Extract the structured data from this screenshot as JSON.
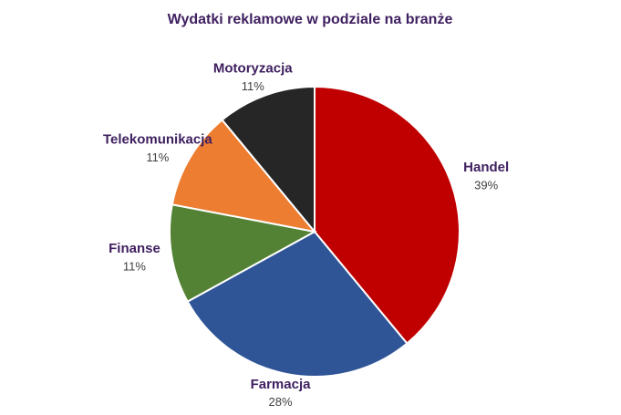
{
  "chart_data": {
    "type": "pie",
    "title": "Wydatki reklamowe w podziale na branże",
    "categories": [
      "Handel",
      "Farmacja",
      "Finanse",
      "Telekomunikacja",
      "Motoryzacja"
    ],
    "values": [
      39,
      28,
      11,
      11,
      11
    ],
    "value_labels": [
      "39%",
      "28%",
      "11%",
      "11%",
      "11%"
    ],
    "colors": [
      "#c00000",
      "#2f5597",
      "#548235",
      "#ed7d31",
      "#262626"
    ]
  }
}
